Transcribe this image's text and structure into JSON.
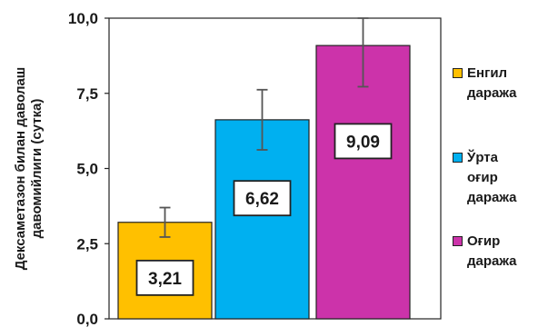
{
  "chart_data": {
    "type": "bar",
    "ylabel": "Дексаметазон билан даволаш давомийлиги (сутка)",
    "xlabel": "",
    "ylim": [
      0,
      10
    ],
    "yticks": [
      "0,0",
      "2,5",
      "5,0",
      "7,5",
      "10,0"
    ],
    "ytick_values": [
      0,
      2.5,
      5,
      7.5,
      10
    ],
    "grid": false,
    "legend_position": "right",
    "series": [
      {
        "name": "Енгил даража",
        "value": 3.21,
        "label": "3,21",
        "error_low": 2.72,
        "error_high": 3.7,
        "color": "#FFC000"
      },
      {
        "name": "Ўрта оғир даража",
        "value": 6.62,
        "label": "6,62",
        "error_low": 5.62,
        "error_high": 7.62,
        "color": "#00B0F0"
      },
      {
        "name": "Оғир даража",
        "value": 9.09,
        "label": "9,09",
        "error_low": 7.72,
        "error_high": 10.0,
        "color": "#CC33AA"
      }
    ]
  },
  "legend": {
    "items": [
      {
        "lines": [
          "Енгил",
          "даража"
        ],
        "color": "#FFC000"
      },
      {
        "lines": [
          "Ўрта",
          "оғир",
          "даража"
        ],
        "color": "#00B0F0"
      },
      {
        "lines": [
          "Оғир",
          "даража"
        ],
        "color": "#CC33AA"
      }
    ]
  }
}
